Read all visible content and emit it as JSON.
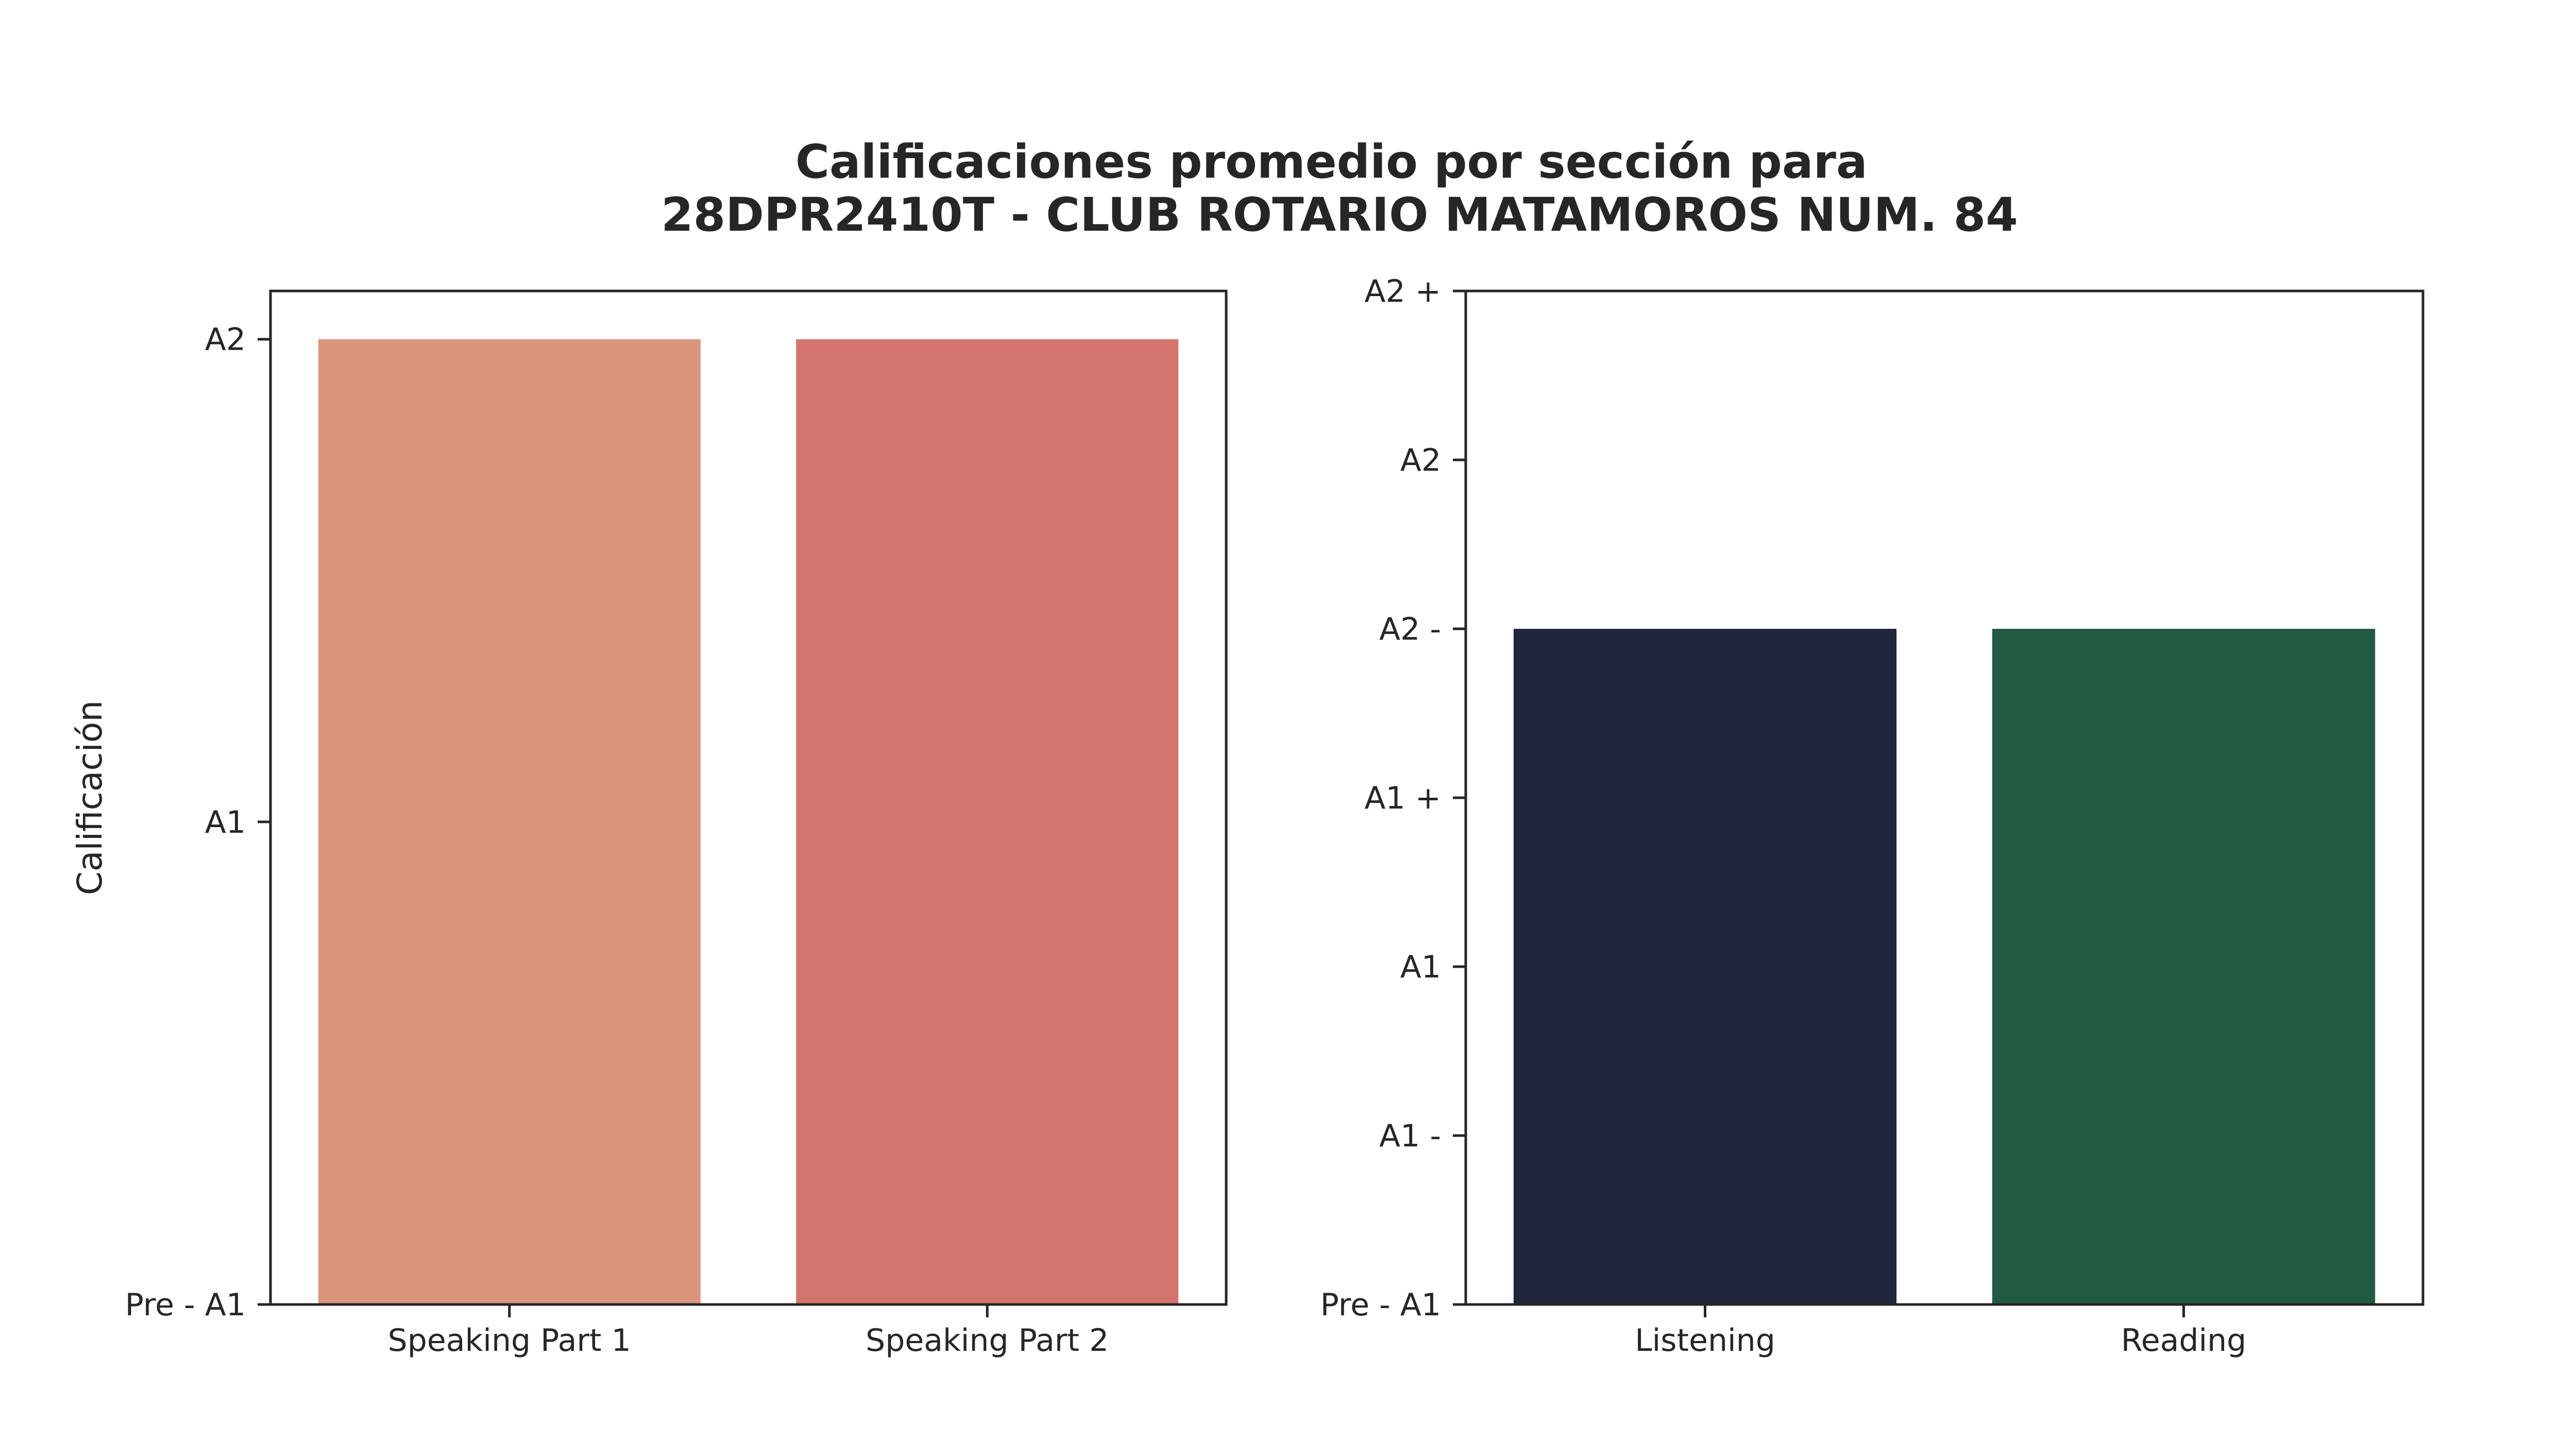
{
  "figure": {
    "title_lines": [
      "Calificaciones promedio por sección para",
      "28DPR2410T - CLUB ROTARIO MATAMOROS NUM. 84"
    ]
  },
  "chart_data": [
    {
      "type": "bar",
      "categories": [
        "Speaking Part 1",
        "Speaking Part 2"
      ],
      "values": [
        2,
        2
      ],
      "colors": [
        "#d9957b",
        "#d3756e"
      ],
      "ylabel": "Calificación",
      "ylim": [
        0,
        2.1
      ],
      "yticks": [
        {
          "value": 0,
          "label": "Pre - A1"
        },
        {
          "value": 1,
          "label": "A1"
        },
        {
          "value": 2,
          "label": "A2"
        }
      ],
      "grid": false
    },
    {
      "type": "bar",
      "categories": [
        "Listening",
        "Reading"
      ],
      "values": [
        4,
        4
      ],
      "colors": [
        "#21263d",
        "#235a42"
      ],
      "ylabel": "",
      "ylim": [
        0,
        6
      ],
      "yticks": [
        {
          "value": 0,
          "label": "Pre - A1"
        },
        {
          "value": 1,
          "label": "A1 -"
        },
        {
          "value": 2,
          "label": "A1"
        },
        {
          "value": 3,
          "label": "A1 +"
        },
        {
          "value": 4,
          "label": "A2 -"
        },
        {
          "value": 5,
          "label": "A2"
        },
        {
          "value": 6,
          "label": "A2 +"
        }
      ],
      "grid": false
    }
  ]
}
